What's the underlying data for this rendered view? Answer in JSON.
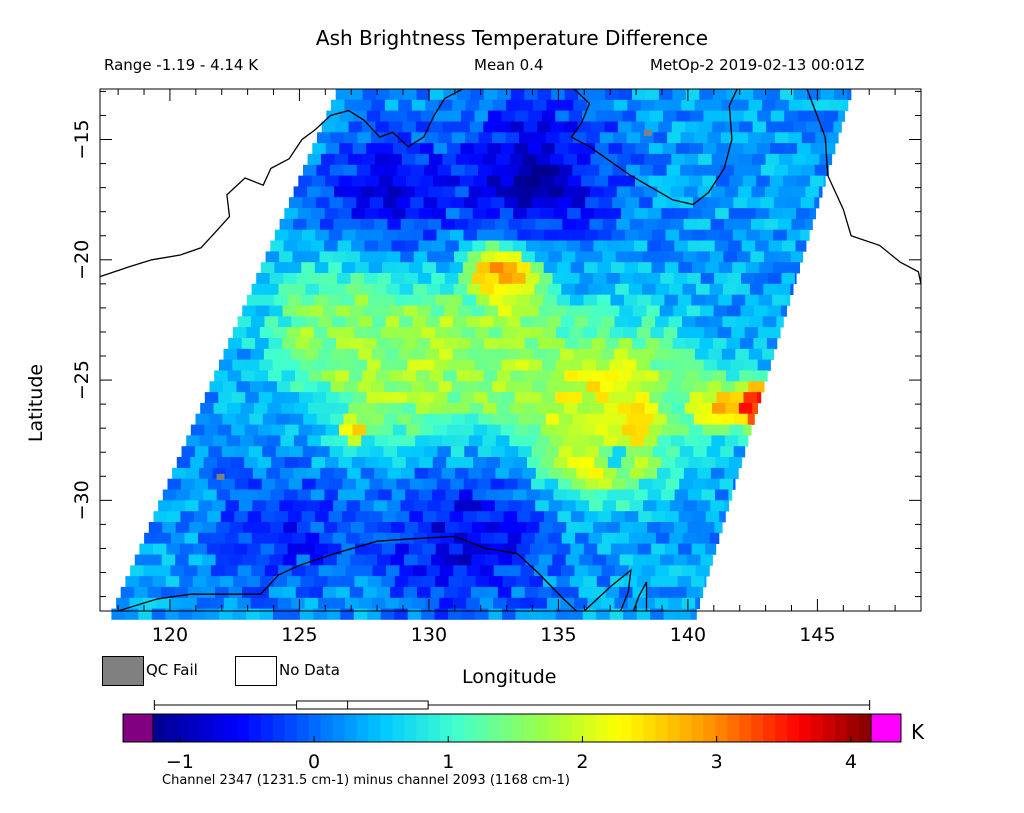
{
  "header": {
    "title": "Ash Brightness Temperature Difference",
    "range": "Range -1.19 - 4.14 K",
    "mean": "Mean 0.4",
    "satellite_time": "MetOp-2 2019-02-13 00:01Z"
  },
  "legend": {
    "qc_fail_label": "QC Fail",
    "no_data_label": "No Data",
    "qc_fail_color": "#808080",
    "no_data_color": "#ffffff"
  },
  "colorbar": {
    "unit": "K",
    "caption": "Channel 2347 (1231.5 cm-1) minus channel 2093 (1168 cm-1)",
    "ticks": [
      {
        "value": -1,
        "label": "−1"
      },
      {
        "value": 0,
        "label": "0"
      },
      {
        "value": 1,
        "label": "1"
      },
      {
        "value": 2,
        "label": "2"
      },
      {
        "value": 3,
        "label": "3"
      },
      {
        "value": 4,
        "label": "4"
      }
    ],
    "min": -1.2,
    "max": 4.15,
    "under_color": "#800080",
    "over_color": "#ff00ff",
    "boxplot": {
      "whisker_min": -1.19,
      "q1": -0.13,
      "median": 0.25,
      "q3": 0.85,
      "whisker_max": 4.14
    }
  },
  "chart_data": {
    "type": "heatmap",
    "title": "Ash Brightness Temperature Difference",
    "xlabel": "Longitude",
    "ylabel": "Latitude",
    "xlim": [
      117.3,
      149.0
    ],
    "ylim": [
      -34.6,
      -12.9
    ],
    "xticks": [
      {
        "value": 120,
        "label": "120"
      },
      {
        "value": 125,
        "label": "125"
      },
      {
        "value": 130,
        "label": "130"
      },
      {
        "value": 135,
        "label": "135"
      },
      {
        "value": 140,
        "label": "140"
      },
      {
        "value": 145,
        "label": "145"
      }
    ],
    "yticks": [
      {
        "value": -15,
        "label": "−15"
      },
      {
        "value": -20,
        "label": "−20"
      },
      {
        "value": -25,
        "label": "−25"
      },
      {
        "value": -30,
        "label": "−30"
      }
    ],
    "units": "K",
    "value_range": [
      -1.19,
      4.14
    ],
    "mean": 0.4,
    "swath": {
      "top_west_lon": 126.4,
      "top_east_lon": 146.3,
      "bottom_west_lon": 117.7,
      "bottom_east_lon": 140.3
    },
    "background_value": 0.3,
    "features": [
      {
        "lon": 143.6,
        "lat": -25.9,
        "value": 4.0,
        "radius": 1.0
      },
      {
        "lon": 142.6,
        "lat": -25.8,
        "value": 3.3,
        "radius": 1.0
      },
      {
        "lon": 141.0,
        "lat": -25.9,
        "value": 2.3,
        "radius": 1.0
      },
      {
        "lon": 132.3,
        "lat": -20.2,
        "value": 3.4,
        "radius": 0.9
      },
      {
        "lon": 133.1,
        "lat": -20.7,
        "value": 2.4,
        "radius": 1.1
      },
      {
        "lon": 137.0,
        "lat": -25.5,
        "value": 2.1,
        "radius": 3.2
      },
      {
        "lon": 136.0,
        "lat": -27.8,
        "value": 1.8,
        "radius": 2.0
      },
      {
        "lon": 128.5,
        "lat": -24.4,
        "value": 1.6,
        "radius": 3.2
      },
      {
        "lon": 126.0,
        "lat": -22.4,
        "value": 1.4,
        "radius": 2.6
      },
      {
        "lon": 132.0,
        "lat": -23.8,
        "value": 1.5,
        "radius": 3.0
      },
      {
        "lon": 126.8,
        "lat": -26.8,
        "value": 2.6,
        "radius": 0.5
      },
      {
        "lon": 129.3,
        "lat": -24.2,
        "value": 3.2,
        "radius": 0.3
      },
      {
        "lon": 134.0,
        "lat": -16.2,
        "value": -0.9,
        "radius": 3.0
      },
      {
        "lon": 128.0,
        "lat": -17.0,
        "value": -0.6,
        "radius": 2.6
      },
      {
        "lon": 131.0,
        "lat": -31.2,
        "value": -0.7,
        "radius": 3.2
      },
      {
        "lon": 124.0,
        "lat": -31.0,
        "value": -0.4,
        "radius": 2.6
      },
      {
        "lon": 137.0,
        "lat": -27.9,
        "value": -1.1,
        "radius": 0.5
      }
    ],
    "qc_fail_points": [
      {
        "lon": 138.3,
        "lat": -14.6
      },
      {
        "lon": 121.8,
        "lat": -28.9
      }
    ],
    "coastline": [
      [
        [
          117.3,
          -20.7
        ],
        [
          118.4,
          -20.3
        ],
        [
          119.3,
          -20.0
        ],
        [
          120.4,
          -19.8
        ],
        [
          121.2,
          -19.5
        ],
        [
          121.8,
          -18.8
        ],
        [
          122.3,
          -18.2
        ],
        [
          122.2,
          -17.3
        ],
        [
          122.9,
          -16.6
        ],
        [
          123.6,
          -16.9
        ],
        [
          123.9,
          -16.2
        ],
        [
          124.6,
          -15.8
        ],
        [
          125.1,
          -15.0
        ],
        [
          125.6,
          -14.6
        ],
        [
          126.2,
          -14.0
        ],
        [
          126.9,
          -13.8
        ],
        [
          127.5,
          -14.2
        ],
        [
          128.1,
          -14.9
        ],
        [
          128.6,
          -14.7
        ],
        [
          129.2,
          -15.3
        ],
        [
          129.8,
          -14.9
        ],
        [
          130.2,
          -14.0
        ],
        [
          130.6,
          -13.3
        ],
        [
          131.3,
          -12.9
        ]
      ],
      [
        [
          135.6,
          -12.9
        ],
        [
          136.2,
          -13.5
        ],
        [
          135.9,
          -14.3
        ],
        [
          135.5,
          -14.9
        ],
        [
          136.2,
          -15.3
        ],
        [
          137.0,
          -15.9
        ],
        [
          137.8,
          -16.5
        ],
        [
          138.6,
          -17.0
        ],
        [
          139.4,
          -17.5
        ],
        [
          140.2,
          -17.7
        ],
        [
          140.8,
          -17.2
        ],
        [
          141.4,
          -16.2
        ],
        [
          141.7,
          -15.0
        ],
        [
          141.6,
          -13.6
        ],
        [
          141.9,
          -12.9
        ]
      ],
      [
        [
          144.6,
          -12.9
        ],
        [
          145.3,
          -14.9
        ],
        [
          145.4,
          -16.5
        ],
        [
          146.0,
          -17.9
        ],
        [
          146.3,
          -19.0
        ],
        [
          147.4,
          -19.4
        ],
        [
          148.2,
          -20.1
        ],
        [
          148.9,
          -20.5
        ],
        [
          149.0,
          -21.0
        ]
      ],
      [
        [
          118.0,
          -34.6
        ],
        [
          119.5,
          -34.1
        ],
        [
          120.8,
          -33.9
        ],
        [
          122.1,
          -33.9
        ],
        [
          123.5,
          -33.9
        ],
        [
          124.2,
          -33.1
        ],
        [
          125.0,
          -32.7
        ],
        [
          126.4,
          -32.2
        ],
        [
          128.0,
          -31.7
        ],
        [
          129.3,
          -31.6
        ],
        [
          131.0,
          -31.5
        ],
        [
          132.2,
          -32.0
        ],
        [
          133.4,
          -32.2
        ],
        [
          134.2,
          -33.0
        ],
        [
          135.2,
          -34.1
        ],
        [
          135.7,
          -34.6
        ]
      ],
      [
        [
          136.0,
          -34.6
        ],
        [
          137.0,
          -33.6
        ],
        [
          137.8,
          -32.9
        ],
        [
          137.7,
          -33.8
        ],
        [
          137.4,
          -34.6
        ]
      ],
      [
        [
          137.9,
          -34.6
        ],
        [
          138.1,
          -34.0
        ],
        [
          138.4,
          -33.4
        ],
        [
          138.4,
          -34.6
        ]
      ]
    ]
  }
}
